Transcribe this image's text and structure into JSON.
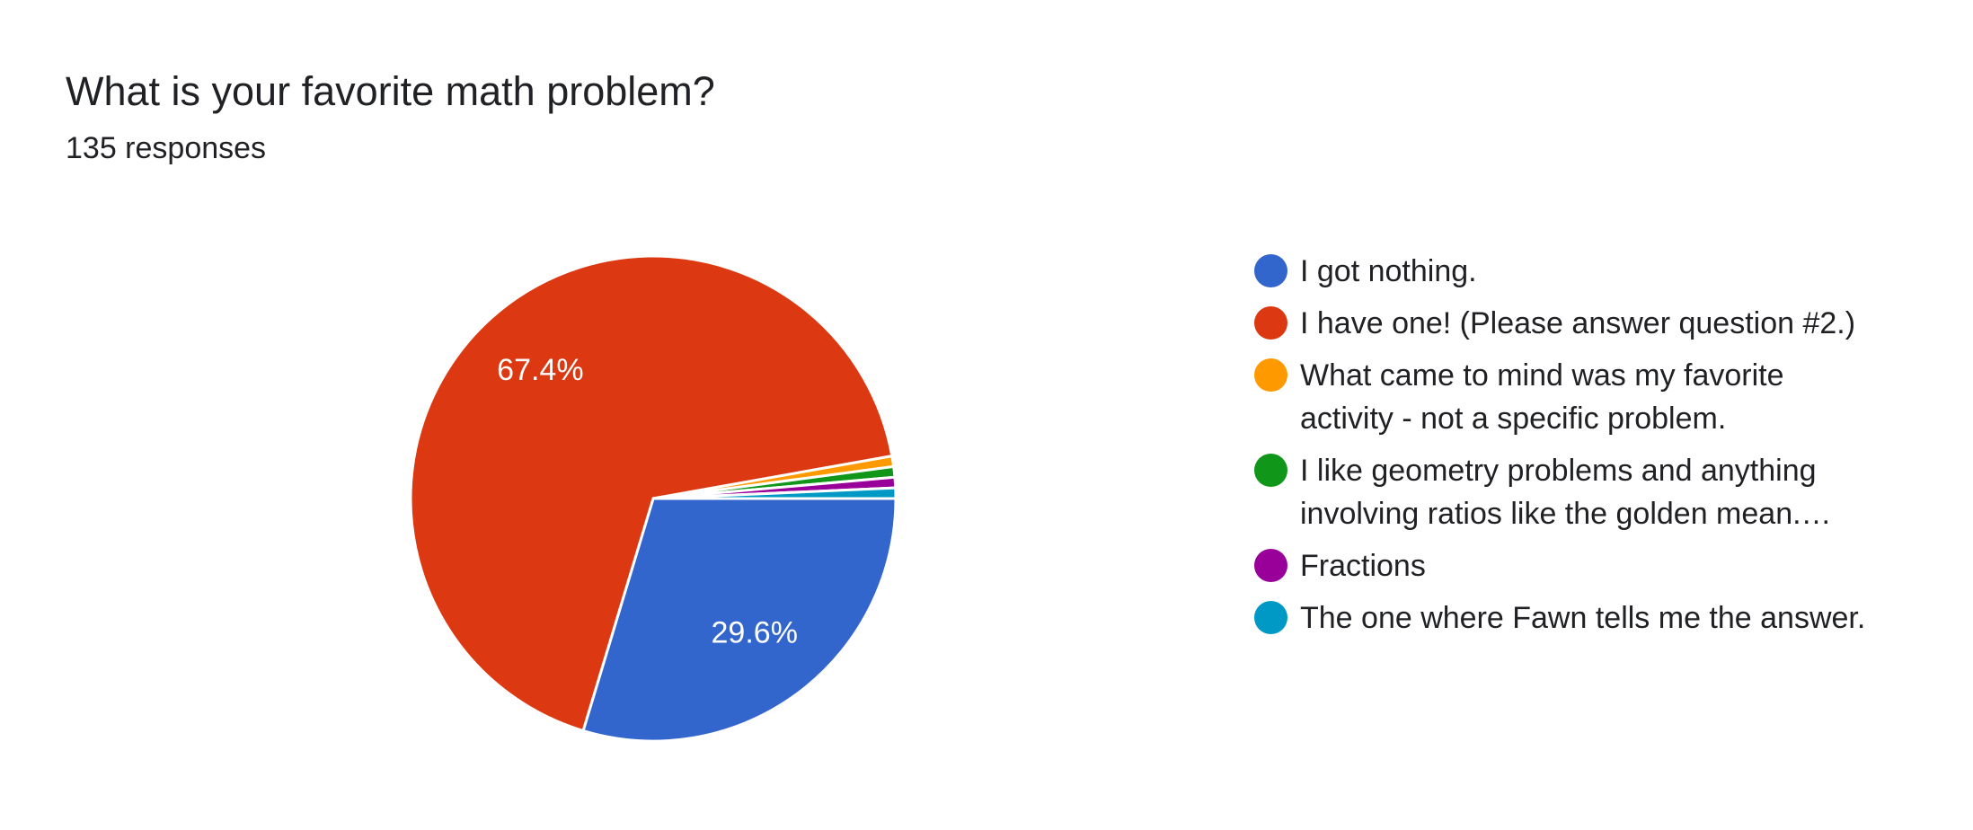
{
  "chart_data": {
    "type": "pie",
    "title": "What is your favorite math problem?",
    "subtitle": "135 responses",
    "categories": [
      "I got nothing.",
      "I have one! (Please answer question #2.)",
      "What came to mind was my favorite activity - not a specific problem.",
      "I like geometry problems and anything involving ratios like the golden mean.…",
      "Fractions",
      "The one where Fawn tells me the answer."
    ],
    "values": [
      29.6,
      67.4,
      0.7,
      0.7,
      0.7,
      0.7
    ],
    "value_labels": [
      "29.6%",
      "67.4%",
      null,
      null,
      null,
      null
    ],
    "colors": [
      "#3366cc",
      "#dc3912",
      "#ff9900",
      "#109618",
      "#990099",
      "#0099c6"
    ]
  }
}
